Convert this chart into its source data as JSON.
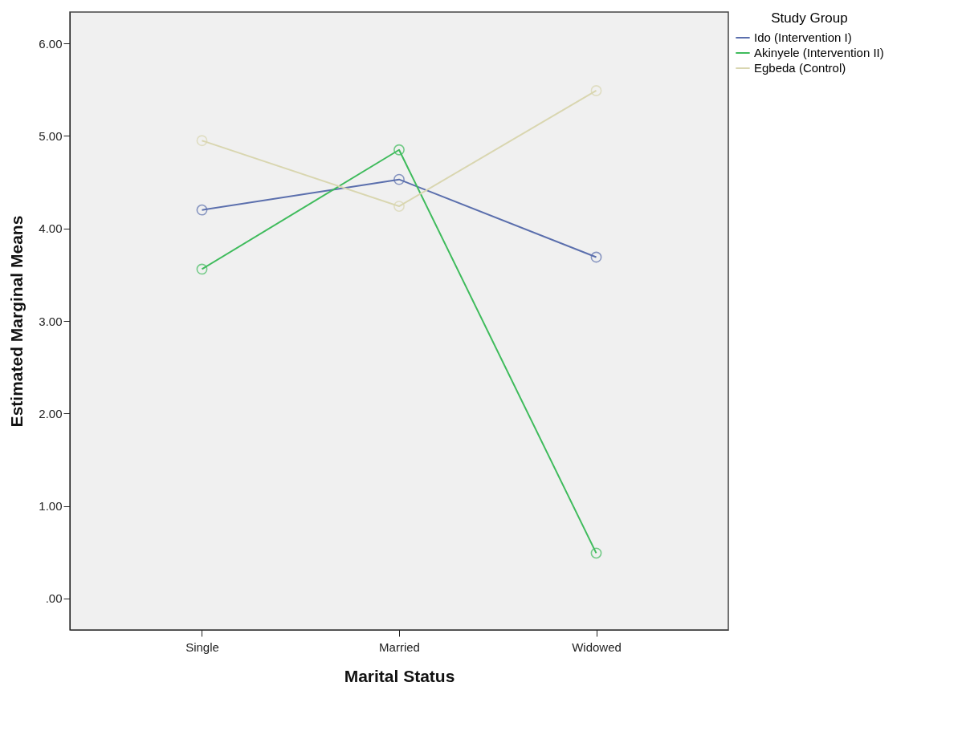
{
  "chart_data": {
    "type": "line",
    "xlabel": "Marital Status",
    "ylabel": "Estimated Marginal Means",
    "legend_title": "Study Group",
    "categories": [
      "Single",
      "Married",
      "Widowed"
    ],
    "series": [
      {
        "name": "Ido (Intervention I)",
        "color": "#5b6fad",
        "values": [
          4.2,
          4.53,
          3.69
        ]
      },
      {
        "name": "Akinyele (Intervention II)",
        "color": "#3fbb5c",
        "values": [
          3.56,
          4.85,
          0.49
        ]
      },
      {
        "name": "Egbeda (Control)",
        "color": "#d9d6b0",
        "values": [
          4.95,
          4.24,
          5.49
        ]
      }
    ],
    "ylim": [
      -0.34,
      6.34
    ],
    "yticks": [
      {
        "value": 0,
        "label": ".00"
      },
      {
        "value": 1,
        "label": "1.00"
      },
      {
        "value": 2,
        "label": "2.00"
      },
      {
        "value": 3,
        "label": "3.00"
      },
      {
        "value": 4,
        "label": "4.00"
      },
      {
        "value": 5,
        "label": "5.00"
      },
      {
        "value": 6,
        "label": "6.00"
      }
    ],
    "grid": false,
    "legend": "top right",
    "marker": "circle",
    "line_style": "solid"
  }
}
